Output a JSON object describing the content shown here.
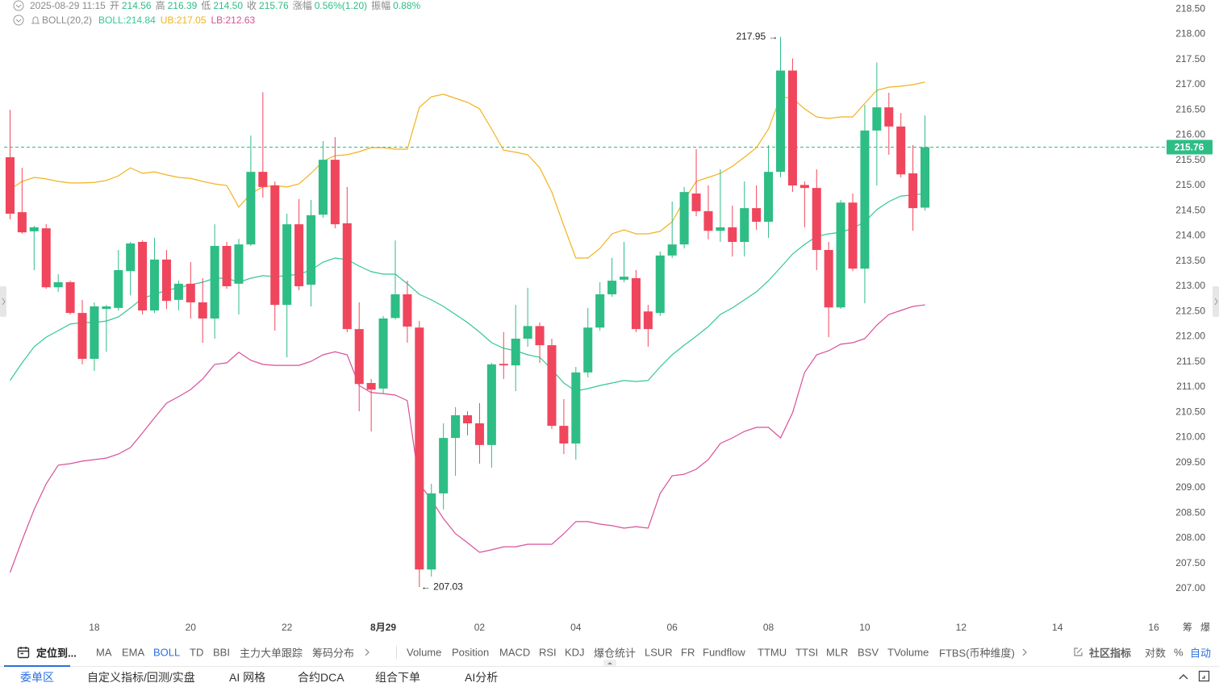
{
  "chart_data": {
    "type": "candlestick",
    "header": {
      "time": "2025-08-29 11:15",
      "fields": [
        {
          "label": "开",
          "value": "214.56"
        },
        {
          "label": "高",
          "value": "216.39"
        },
        {
          "label": "低",
          "value": "214.50"
        },
        {
          "label": "收",
          "value": "215.76"
        },
        {
          "label": "涨幅",
          "value": "0.56%(1.20)"
        },
        {
          "label": "振幅",
          "value": "0.88%"
        }
      ]
    },
    "indicator_label": "BOLL(20,2)",
    "up_color": "#2ebd85",
    "down_color": "#f0465d",
    "open": [
      215.56,
      214.47,
      214.09,
      214.15,
      212.98,
      213.08,
      212.47,
      211.56,
      212.55,
      212.57,
      213.3,
      213.88,
      212.52,
      213.53,
      212.73,
      213.05,
      212.68,
      212.36,
      213.8,
      213.05,
      213.83,
      215.27,
      215.0,
      212.63,
      214.23,
      213.03,
      214.42,
      215.51,
      214.25,
      212.15,
      211.08,
      210.97,
      212.37,
      212.84,
      212.18,
      207.38,
      208.89,
      209.99,
      210.44,
      210.28,
      209.85,
      211.46,
      211.43,
      211.96,
      212.21,
      211.83,
      210.23,
      209.88,
      211.29,
      212.18,
      212.84,
      213.13,
      213.16,
      212.5,
      212.47,
      213.61,
      213.83,
      214.84,
      214.49,
      214.1,
      214.17,
      213.88,
      214.55,
      214.28,
      215.27,
      217.28,
      215.01,
      214.95,
      213.72,
      212.58,
      214.66,
      213.35,
      216.09,
      216.55,
      216.17,
      215.24,
      214.56
    ],
    "high": [
      216.5,
      215.35,
      214.2,
      214.23,
      213.24,
      213.11,
      212.73,
      212.68,
      212.63,
      213.72,
      213.88,
      213.91,
      213.96,
      213.72,
      213.11,
      213.48,
      213.16,
      214.23,
      213.88,
      213.94,
      215.99,
      216.85,
      215.08,
      214.44,
      214.73,
      214.71,
      215.88,
      215.96,
      214.97,
      212.68,
      211.16,
      212.41,
      213.91,
      213.11,
      212.31,
      209.08,
      210.28,
      210.6,
      210.52,
      210.68,
      211.48,
      212.09,
      212.63,
      212.97,
      212.28,
      211.96,
      210.76,
      211.4,
      212.57,
      213.08,
      213.56,
      213.88,
      213.32,
      212.63,
      213.69,
      214.68,
      214.97,
      215.72,
      215.0,
      215.32,
      214.6,
      215.08,
      215.0,
      215.8,
      217.95,
      217.52,
      215.08,
      215.32,
      213.88,
      214.71,
      214.84,
      216.6,
      217.44,
      216.84,
      216.44,
      215.8,
      216.39
    ],
    "low": [
      214.33,
      214.04,
      213.32,
      212.95,
      212.89,
      212.44,
      211.45,
      211.32,
      211.7,
      212.52,
      212.82,
      212.44,
      212.47,
      212.55,
      212.52,
      212.36,
      211.88,
      211.96,
      212.95,
      212.44,
      213.8,
      214.76,
      212.12,
      211.59,
      212.92,
      212.6,
      214.36,
      214.15,
      212.09,
      210.52,
      210.12,
      210.87,
      212.34,
      211.88,
      207.03,
      207.24,
      208.57,
      209.24,
      210.04,
      209.48,
      209.4,
      211.16,
      210.92,
      211.8,
      211.48,
      210.17,
      209.67,
      209.56,
      211.19,
      212.12,
      212.79,
      213.08,
      212.09,
      211.8,
      212.41,
      213.56,
      213.75,
      214.39,
      213.93,
      213.88,
      213.59,
      213.59,
      214.12,
      213.96,
      215.16,
      214.87,
      214.17,
      213.32,
      211.99,
      212.55,
      213.3,
      212.66,
      215.0,
      215.61,
      215.16,
      214.1,
      214.5
    ],
    "close": [
      214.44,
      214.07,
      214.17,
      212.98,
      213.08,
      212.47,
      211.56,
      212.6,
      212.6,
      213.32,
      213.85,
      212.52,
      213.53,
      212.71,
      213.05,
      212.68,
      212.36,
      213.8,
      213.0,
      213.83,
      215.27,
      214.97,
      212.63,
      214.23,
      213.0,
      214.41,
      215.51,
      214.23,
      212.15,
      211.06,
      210.95,
      212.36,
      212.84,
      212.2,
      207.38,
      208.89,
      209.99,
      210.44,
      210.28,
      209.85,
      211.45,
      211.43,
      211.96,
      212.21,
      211.83,
      210.23,
      209.88,
      211.29,
      212.18,
      212.84,
      213.11,
      213.19,
      212.15,
      212.15,
      213.61,
      213.83,
      214.87,
      214.49,
      214.1,
      214.17,
      213.88,
      214.55,
      214.28,
      215.27,
      217.28,
      215.0,
      214.95,
      213.72,
      212.58,
      214.66,
      213.35,
      216.09,
      216.55,
      216.17,
      215.22,
      214.55,
      215.76
    ],
    "series": [
      {
        "name": "BOLL:214.84",
        "color": "#35c796",
        "values": [
          211.13,
          211.48,
          211.8,
          211.99,
          212.12,
          212.25,
          212.28,
          212.28,
          212.31,
          212.39,
          212.57,
          212.76,
          212.84,
          212.92,
          212.97,
          213.03,
          213.08,
          213.16,
          213.16,
          213.08,
          213.16,
          213.21,
          213.19,
          213.21,
          213.24,
          213.32,
          213.48,
          213.56,
          213.53,
          213.4,
          213.29,
          213.24,
          213.24,
          213.05,
          212.84,
          212.73,
          212.6,
          212.44,
          212.28,
          212.09,
          211.88,
          211.77,
          211.72,
          211.64,
          211.59,
          211.35,
          211.08,
          210.92,
          210.97,
          211.03,
          211.08,
          211.13,
          211.11,
          211.13,
          211.4,
          211.64,
          211.83,
          212.01,
          212.2,
          212.44,
          212.57,
          212.73,
          212.89,
          213.11,
          213.37,
          213.64,
          213.83,
          213.99,
          214.04,
          214.07,
          214.15,
          214.28,
          214.52,
          214.68,
          214.79,
          214.81,
          214.84
        ]
      },
      {
        "name": "UB:217.05",
        "color": "#f2b21f",
        "values": [
          214.92,
          215.08,
          215.16,
          215.13,
          215.08,
          215.05,
          215.05,
          215.06,
          215.1,
          215.19,
          215.35,
          215.24,
          215.27,
          215.21,
          215.16,
          215.14,
          215.08,
          215.03,
          215.0,
          214.57,
          214.84,
          214.97,
          215.0,
          214.97,
          215.03,
          215.24,
          215.48,
          215.59,
          215.61,
          215.67,
          215.75,
          215.75,
          215.72,
          215.72,
          216.55,
          216.76,
          216.81,
          216.73,
          216.65,
          216.52,
          216.12,
          215.7,
          215.66,
          215.61,
          215.35,
          214.87,
          214.2,
          213.56,
          213.56,
          213.75,
          214.04,
          214.12,
          214.04,
          214.04,
          214.09,
          214.28,
          214.71,
          215.08,
          215.16,
          215.24,
          215.38,
          215.56,
          215.75,
          216.12,
          216.76,
          216.73,
          216.52,
          216.36,
          216.33,
          216.36,
          216.36,
          216.63,
          216.89,
          216.95,
          216.97,
          217.0,
          217.05
        ]
      },
      {
        "name": "LB:212.63",
        "color": "#d8509a",
        "values": [
          207.32,
          207.96,
          208.57,
          209.08,
          209.45,
          209.48,
          209.53,
          209.56,
          209.59,
          209.67,
          209.8,
          210.09,
          210.39,
          210.68,
          210.81,
          210.95,
          211.16,
          211.45,
          211.48,
          211.69,
          211.53,
          211.45,
          211.43,
          211.43,
          211.43,
          211.51,
          211.64,
          211.7,
          211.64,
          211.03,
          210.89,
          210.87,
          210.84,
          210.73,
          209.08,
          208.76,
          208.39,
          208.09,
          207.91,
          207.72,
          207.77,
          207.83,
          207.83,
          207.88,
          207.88,
          207.88,
          208.09,
          208.33,
          208.33,
          208.28,
          208.25,
          208.2,
          208.23,
          208.2,
          208.89,
          209.24,
          209.27,
          209.37,
          209.56,
          209.88,
          209.99,
          210.12,
          210.2,
          210.2,
          209.99,
          210.49,
          211.29,
          211.64,
          211.72,
          211.85,
          211.88,
          211.96,
          212.23,
          212.44,
          212.52,
          212.6,
          212.63
        ]
      }
    ],
    "xlim": [
      -0.5,
      96
    ],
    "xticks": [
      {
        "value": 7,
        "label": "18"
      },
      {
        "value": 15,
        "label": "20"
      },
      {
        "value": 23,
        "label": "22"
      },
      {
        "value": 31,
        "label": "8月29"
      },
      {
        "value": 39,
        "label": "02"
      },
      {
        "value": 47,
        "label": "04"
      },
      {
        "value": 55,
        "label": "06"
      },
      {
        "value": 63,
        "label": "08"
      },
      {
        "value": 71,
        "label": "10"
      },
      {
        "value": 79,
        "label": "12"
      },
      {
        "value": 87,
        "label": "14"
      },
      {
        "value": 95,
        "label": "16"
      }
    ],
    "ylim": [
      206.44,
      218.68
    ],
    "yticks": [
      {
        "value": 207,
        "label": "207.00"
      },
      {
        "value": 207.5,
        "label": "207.50"
      },
      {
        "value": 208,
        "label": "208.00"
      },
      {
        "value": 208.5,
        "label": "208.50"
      },
      {
        "value": 209,
        "label": "209.00"
      },
      {
        "value": 209.5,
        "label": "209.50"
      },
      {
        "value": 210,
        "label": "210.00"
      },
      {
        "value": 210.5,
        "label": "210.50"
      },
      {
        "value": 211,
        "label": "211.00"
      },
      {
        "value": 211.5,
        "label": "211.50"
      },
      {
        "value": 212,
        "label": "212.00"
      },
      {
        "value": 212.5,
        "label": "212.50"
      },
      {
        "value": 213,
        "label": "213.00"
      },
      {
        "value": 213.5,
        "label": "213.50"
      },
      {
        "value": 214,
        "label": "214.00"
      },
      {
        "value": 214.5,
        "label": "214.50"
      },
      {
        "value": 215,
        "label": "215.00"
      },
      {
        "value": 215.5,
        "label": "215.50"
      },
      {
        "value": 216,
        "label": "216.00"
      },
      {
        "value": 216.5,
        "label": "216.50"
      },
      {
        "value": 217,
        "label": "217.00"
      },
      {
        "value": 217.5,
        "label": "217.50"
      },
      {
        "value": 218,
        "label": "218.00"
      },
      {
        "value": 218.5,
        "label": "218.50"
      }
    ],
    "last_price": 215.76,
    "annotations": [
      {
        "text": "217.95 →",
        "x": 64,
        "y": 217.95
      },
      {
        "text": "← 207.03",
        "x": 34,
        "y": 207.03
      }
    ],
    "axis_side": [
      "筹",
      "爆"
    ]
  },
  "toolbar": {
    "locate": "定位到...",
    "main_indicators": [
      "MA",
      "EMA",
      "BOLL",
      "TD",
      "BBI",
      "主力大单跟踪",
      "筹码分布"
    ],
    "active_main": 2,
    "sub_indicators": [
      "Volume",
      "Position",
      "MACD",
      "RSI",
      "KDJ",
      "爆仓统计",
      "LSUR",
      "FR",
      "Fundflow",
      "TTMU",
      "TTSI",
      "MLR",
      "BSV",
      "TVolume",
      "FTBS(币种维度)"
    ],
    "community": "社区指标",
    "scale_options": [
      "对数",
      "%",
      "自动"
    ],
    "active_scale": 2
  },
  "tabs": {
    "items": [
      "委单区",
      "自定义指标/回测/实盘",
      "AI 网格",
      "合约DCA",
      "组合下单",
      "AI分析"
    ],
    "active": 0
  }
}
